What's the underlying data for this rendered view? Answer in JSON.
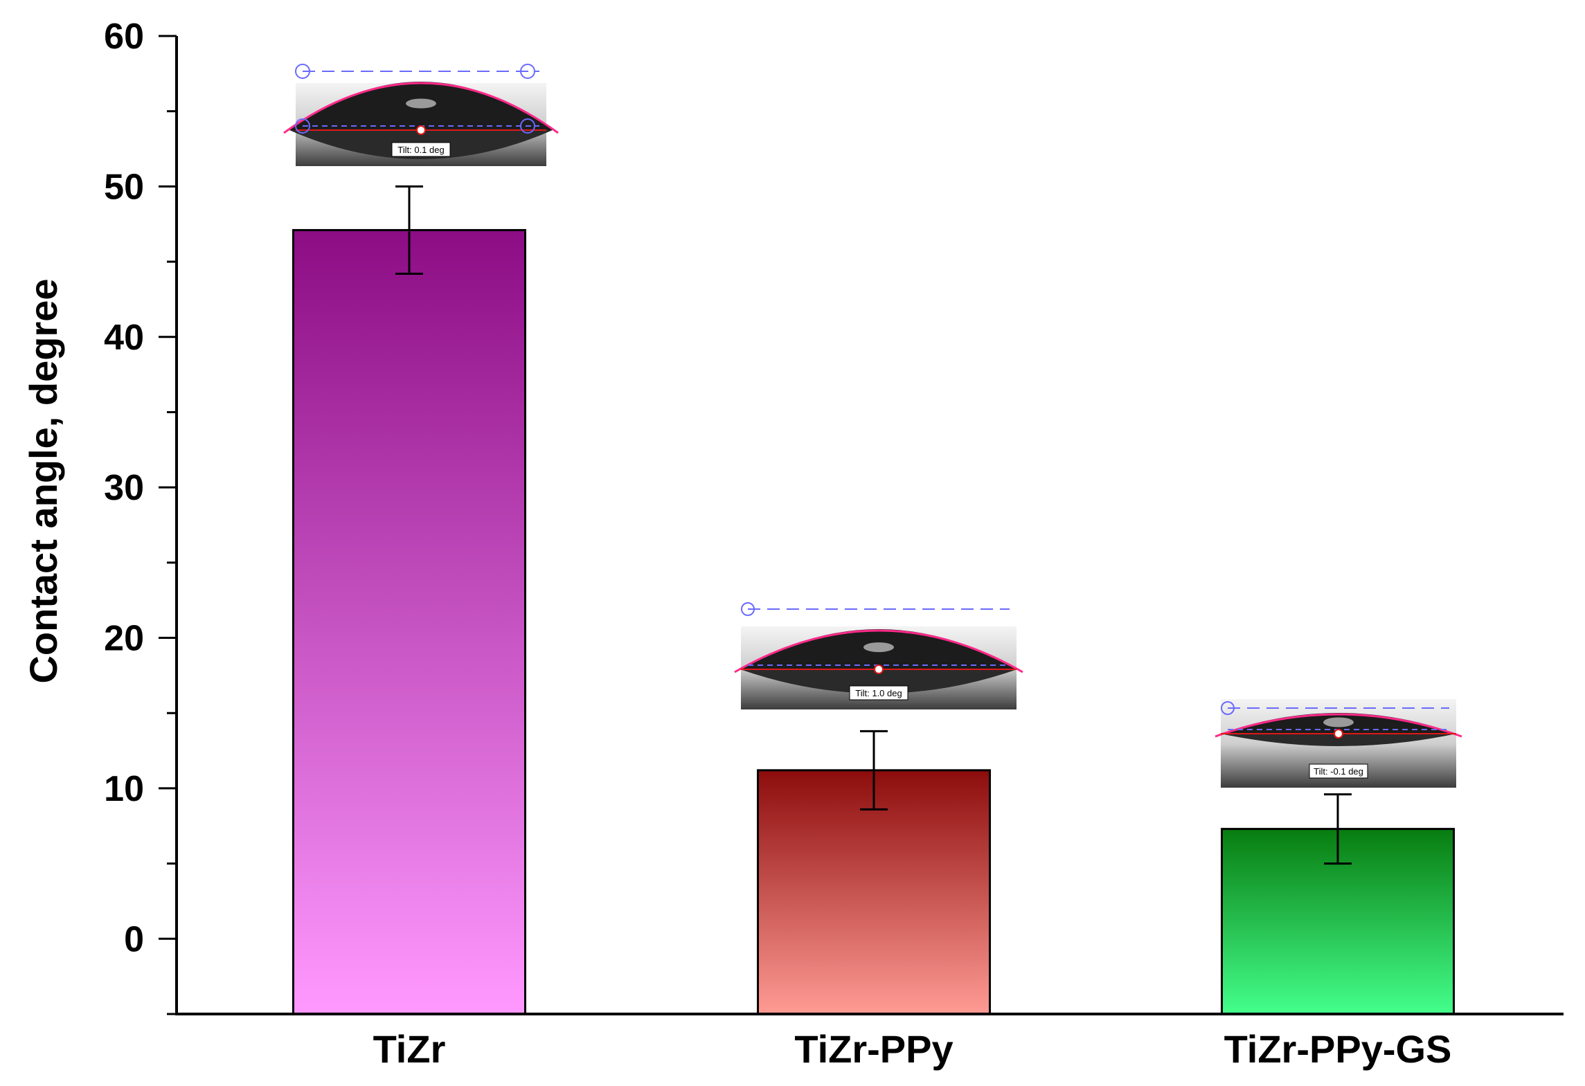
{
  "chart_data": {
    "type": "bar",
    "title": "",
    "xlabel": "",
    "ylabel": "Contact angle, degree",
    "categories": [
      "TiZr",
      "TiZr-PPy",
      "TiZr-PPy-GS"
    ],
    "values": [
      47.1,
      11.2,
      7.3
    ],
    "errors": [
      2.9,
      2.6,
      2.3
    ],
    "ylim": [
      -5,
      60
    ],
    "yticks": [
      0,
      10,
      20,
      30,
      40,
      50,
      60
    ],
    "ytick_labels": [
      "0",
      "10",
      "20",
      "30",
      "40",
      "50",
      "60"
    ],
    "grid": false,
    "legend": "none",
    "colors": [
      {
        "top": "#8c0c84",
        "bottom": "#ff99ff"
      },
      {
        "top": "#8c0c0c",
        "bottom": "#ff9b94"
      },
      {
        "top": "#087c10",
        "bottom": "#44ff8c"
      }
    ],
    "insets": [
      {
        "label": "Tilt: 0.1 deg"
      },
      {
        "label": "Tilt: 1.0 deg"
      },
      {
        "label": "Tilt: -0.1 deg"
      }
    ]
  }
}
